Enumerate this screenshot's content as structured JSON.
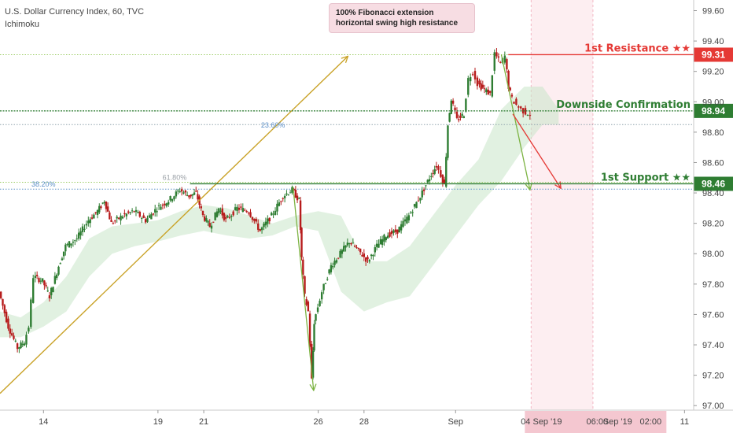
{
  "header": {
    "symbol_line": "U.S. Dollar Currency Index, 60, TVC",
    "indicator": "Ichimoku"
  },
  "callout": {
    "line1": "100% Fibonacci extension",
    "line2": "horizontal swing high resistance"
  },
  "chart_data": {
    "type": "candlestick",
    "y_axis": {
      "min": 96.97,
      "max": 99.67,
      "ticks": [
        "99.60",
        "99.40",
        "99.20",
        "99.00",
        "98.80",
        "98.60",
        "98.40",
        "98.20",
        "98.00",
        "97.80",
        "97.60",
        "97.40",
        "97.20",
        "97.00"
      ]
    },
    "x_axis": {
      "day_min": 12.1,
      "day_max": 42.4,
      "ticks": [
        {
          "label": "14",
          "day": 14
        },
        {
          "label": "19",
          "day": 19
        },
        {
          "label": "21",
          "day": 21
        },
        {
          "label": "26",
          "day": 26
        },
        {
          "label": "28",
          "day": 28
        },
        {
          "label": "Sep",
          "day": 32
        },
        {
          "label": "11",
          "day": 42
        }
      ],
      "highlight_labels": [
        "04 Sep '19",
        "06:00",
        "Sep '19",
        "02:00"
      ]
    },
    "price_path": [
      [
        12.1,
        97.75
      ],
      [
        12.5,
        97.52
      ],
      [
        12.9,
        97.38
      ],
      [
        13.2,
        97.42
      ],
      [
        13.4,
        97.52
      ],
      [
        13.6,
        97.85
      ],
      [
        14.0,
        97.82
      ],
      [
        14.3,
        97.72
      ],
      [
        14.7,
        97.92
      ],
      [
        15.0,
        98.05
      ],
      [
        15.5,
        98.1
      ],
      [
        16.0,
        98.22
      ],
      [
        16.4,
        98.28
      ],
      [
        16.7,
        98.35
      ],
      [
        17.0,
        98.2
      ],
      [
        17.5,
        98.25
      ],
      [
        18.0,
        98.28
      ],
      [
        18.5,
        98.22
      ],
      [
        19.0,
        98.3
      ],
      [
        19.5,
        98.35
      ],
      [
        20.0,
        98.42
      ],
      [
        20.4,
        98.38
      ],
      [
        20.7,
        98.4
      ],
      [
        21.0,
        98.25
      ],
      [
        21.3,
        98.18
      ],
      [
        21.7,
        98.3
      ],
      [
        22.0,
        98.22
      ],
      [
        22.5,
        98.3
      ],
      [
        23.0,
        98.28
      ],
      [
        23.5,
        98.15
      ],
      [
        24.0,
        98.25
      ],
      [
        24.5,
        98.38
      ],
      [
        24.9,
        98.42
      ],
      [
        25.2,
        98.35
      ],
      [
        25.3,
        97.97
      ],
      [
        25.45,
        97.72
      ],
      [
        25.6,
        97.62
      ],
      [
        25.75,
        97.17
      ],
      [
        25.85,
        97.55
      ],
      [
        26.2,
        97.75
      ],
      [
        26.6,
        97.92
      ],
      [
        27.0,
        98.0
      ],
      [
        27.4,
        98.08
      ],
      [
        27.8,
        98.02
      ],
      [
        28.2,
        97.95
      ],
      [
        28.6,
        98.05
      ],
      [
        29.0,
        98.12
      ],
      [
        29.5,
        98.15
      ],
      [
        30.0,
        98.25
      ],
      [
        30.5,
        98.38
      ],
      [
        30.9,
        98.5
      ],
      [
        31.2,
        98.58
      ],
      [
        31.4,
        98.52
      ],
      [
        31.55,
        98.45
      ],
      [
        31.7,
        98.85
      ],
      [
        31.85,
        99.02
      ],
      [
        32.1,
        98.88
      ],
      [
        32.4,
        98.92
      ],
      [
        32.6,
        99.15
      ],
      [
        32.8,
        99.2
      ],
      [
        33.0,
        99.12
      ],
      [
        33.3,
        99.08
      ],
      [
        33.55,
        99.05
      ],
      [
        33.75,
        99.32
      ],
      [
        34.0,
        99.25
      ],
      [
        34.2,
        99.3
      ],
      [
        34.35,
        99.1
      ],
      [
        34.5,
        99.02
      ],
      [
        34.7,
        98.98
      ],
      [
        34.9,
        98.95
      ],
      [
        35.1,
        98.93
      ],
      [
        35.3,
        98.92
      ]
    ],
    "cloud_upper": [
      [
        12.1,
        97.62
      ],
      [
        13.0,
        97.58
      ],
      [
        14.0,
        97.68
      ],
      [
        15.0,
        97.85
      ],
      [
        16.0,
        98.1
      ],
      [
        17.0,
        98.18
      ],
      [
        18.0,
        98.2
      ],
      [
        19.0,
        98.22
      ],
      [
        20.0,
        98.28
      ],
      [
        21.0,
        98.32
      ],
      [
        22.0,
        98.3
      ],
      [
        23.0,
        98.25
      ],
      [
        24.0,
        98.2
      ],
      [
        25.0,
        98.25
      ],
      [
        26.0,
        98.28
      ],
      [
        27.0,
        98.25
      ],
      [
        28.0,
        97.95
      ],
      [
        29.0,
        97.95
      ],
      [
        30.0,
        98.05
      ],
      [
        31.0,
        98.25
      ],
      [
        32.0,
        98.45
      ],
      [
        33.0,
        98.62
      ],
      [
        34.0,
        98.95
      ],
      [
        35.0,
        99.1
      ],
      [
        35.8,
        99.1
      ],
      [
        36.5,
        98.95
      ]
    ],
    "cloud_lower": [
      [
        12.1,
        97.45
      ],
      [
        13.0,
        97.45
      ],
      [
        14.0,
        97.52
      ],
      [
        15.0,
        97.62
      ],
      [
        16.0,
        97.85
      ],
      [
        17.0,
        98.0
      ],
      [
        18.0,
        98.05
      ],
      [
        19.0,
        98.08
      ],
      [
        20.0,
        98.12
      ],
      [
        21.0,
        98.15
      ],
      [
        22.0,
        98.12
      ],
      [
        23.0,
        98.1
      ],
      [
        24.0,
        98.12
      ],
      [
        25.0,
        98.18
      ],
      [
        26.0,
        98.15
      ],
      [
        27.0,
        97.75
      ],
      [
        28.0,
        97.62
      ],
      [
        29.0,
        97.68
      ],
      [
        30.0,
        97.72
      ],
      [
        31.0,
        97.92
      ],
      [
        32.0,
        98.12
      ],
      [
        33.0,
        98.32
      ],
      [
        34.0,
        98.48
      ],
      [
        35.0,
        98.7
      ],
      [
        35.8,
        98.85
      ],
      [
        36.5,
        98.85
      ]
    ],
    "levels": [
      {
        "name": "1st Resistance",
        "label": "1st Resistance ★★",
        "price": 99.31,
        "tag": "99.31",
        "color": "#e53935"
      },
      {
        "name": "Downside Confirmation",
        "label": "Downside Confirmation",
        "price": 98.94,
        "tag": "98.94",
        "color": "#2e7d32"
      },
      {
        "name": "1st Support",
        "label": "1st Support ★★",
        "price": 98.46,
        "tag": "98.46",
        "color": "#2e7d32"
      }
    ],
    "fib_labels": [
      {
        "text": "23.60%",
        "day": 23.5,
        "price": 98.85,
        "color": "#5b8fc8"
      },
      {
        "text": "61.80%",
        "day": 19.2,
        "price": 98.47,
        "color": "#9aa0a6"
      },
      {
        "text": "38.20%",
        "day": 12.1,
        "price": 98.425,
        "color": "#5b8fc8"
      }
    ],
    "fib_dotted_lines": [
      {
        "price": 99.31,
        "from_day": 12.1,
        "to_day": 42.4,
        "color": "#9ccc65"
      },
      {
        "price": 98.94,
        "from_day": 12.1,
        "to_day": 42.4,
        "color": "#2e7d32"
      },
      {
        "price": 98.85,
        "from_day": 12.1,
        "to_day": 42.4,
        "color": "#90a4ae"
      },
      {
        "price": 98.47,
        "from_day": 12.1,
        "to_day": 42.4,
        "color": "#9ccc65"
      },
      {
        "price": 98.425,
        "from_day": 12.1,
        "to_day": 42.4,
        "color": "#5b8fc8"
      }
    ],
    "trend_arrow": {
      "from": [
        12.1,
        97.08
      ],
      "to": [
        27.3,
        99.3
      ],
      "color": "#c9a227"
    },
    "swing_arrows": [
      {
        "from": [
          24.9,
          98.44
        ],
        "to": [
          25.8,
          97.1
        ],
        "color": "#7cb342"
      },
      {
        "from": [
          34.0,
          99.31
        ],
        "to": [
          35.25,
          98.42
        ],
        "color": "#7cb342"
      },
      {
        "from": [
          34.5,
          98.92
        ],
        "to": [
          36.6,
          98.43
        ],
        "color": "#e53935"
      }
    ],
    "highlight_day_range": [
      35.3,
      38.0
    ]
  }
}
